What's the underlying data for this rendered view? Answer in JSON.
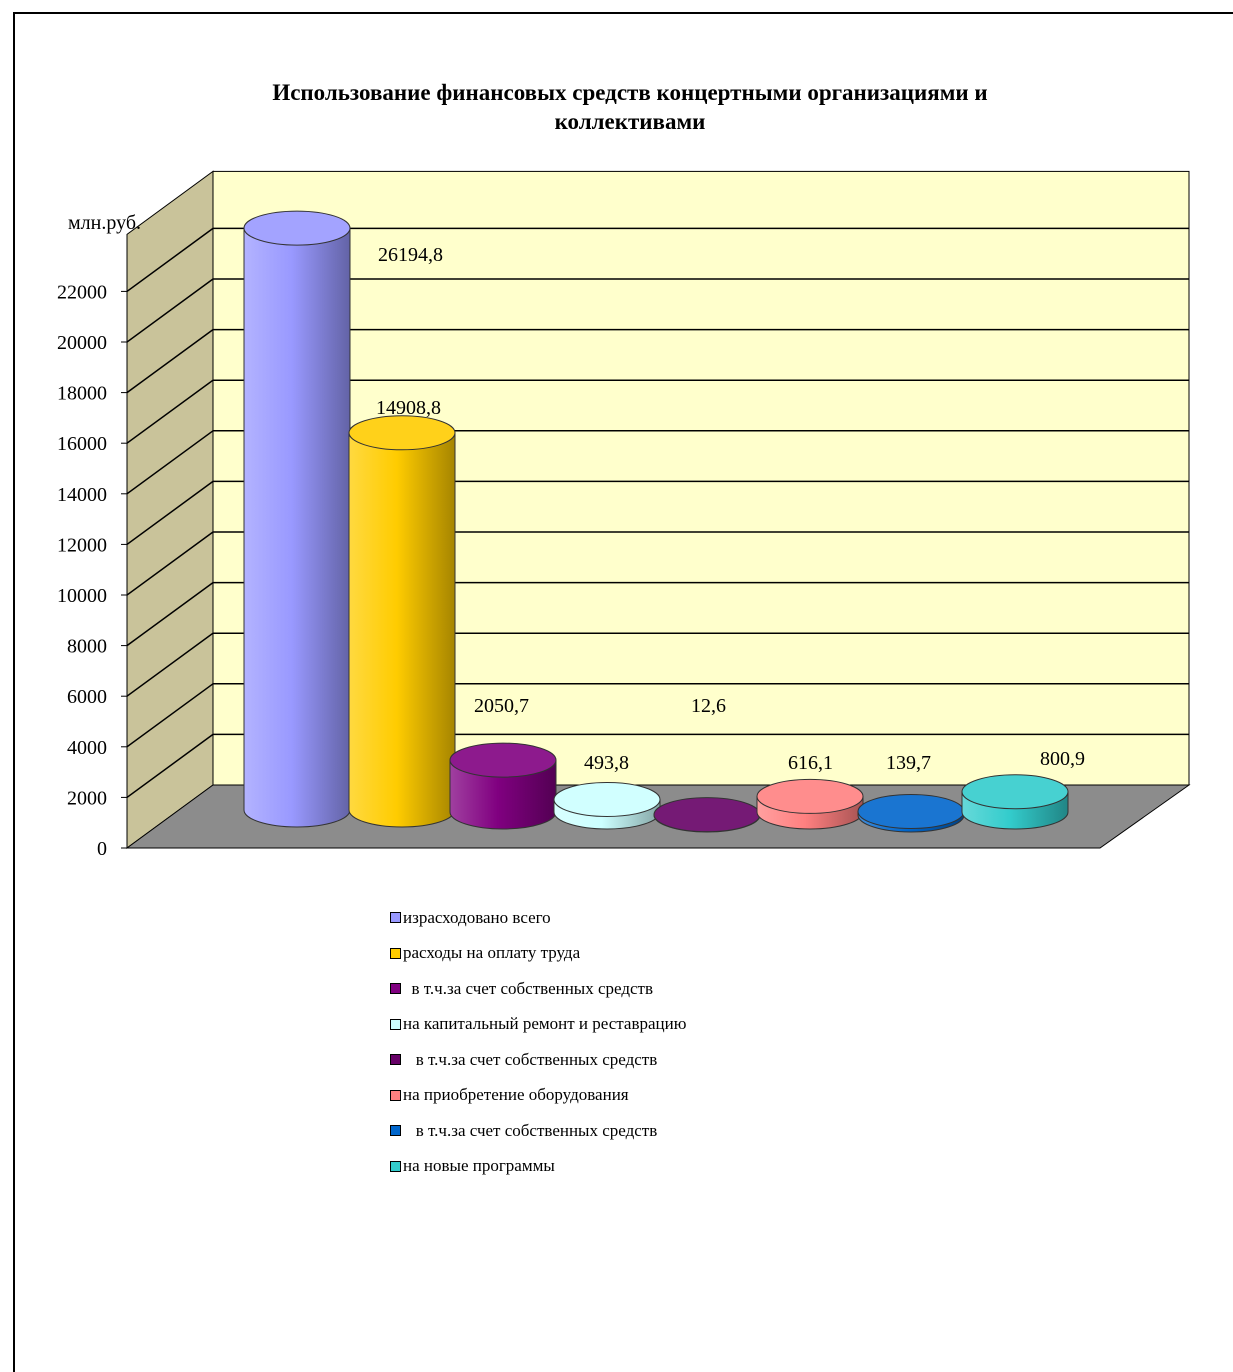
{
  "chart_data": {
    "type": "bar",
    "style": "3d-cylinder",
    "title": "Использование финансовых средств  концертными организациями и коллективами",
    "ylabel": "млн.руб.",
    "ylim": [
      0,
      22000
    ],
    "y_ticks": [
      "0",
      "2000",
      "4000",
      "6000",
      "8000",
      "10000",
      "12000",
      "14000",
      "16000",
      "18000",
      "20000",
      "22000"
    ],
    "grid": true,
    "legend_position": "bottom",
    "wall_color": "#ffffcc",
    "floor_color": "#8c8c8c",
    "side_wall_color": "#c9c39a",
    "series": [
      {
        "name": "израсходовано всего",
        "value": 26194.8,
        "label": "26194,8",
        "color": "#9999ff"
      },
      {
        "name": "расходы на оплату труда",
        "value": 14908.8,
        "label": "14908,8",
        "color": "#ffcc00"
      },
      {
        "name": "в т.ч.за счет собственных средств",
        "value": 2050.7,
        "label": "2050,7",
        "color": "#800080"
      },
      {
        "name": "на капитальный ремонт и реставрацию",
        "value": 493.8,
        "label": "493,8",
        "color": "#ccffff"
      },
      {
        "name": "в т.ч.за счет собственных средств",
        "value": 12.6,
        "label": "12,6",
        "color": "#660066"
      },
      {
        "name": "на приобретение оборудования",
        "value": 616.1,
        "label": "616,1",
        "color": "#ff8080"
      },
      {
        "name": "в т.ч.за счет собственных средств",
        "value": 139.7,
        "label": "139,7",
        "color": "#0066cc"
      },
      {
        "name": "на новые программы",
        "value": 800.9,
        "label": "800,9",
        "color": "#33cccc"
      }
    ]
  },
  "legend": {
    "items": [
      {
        "text": "израсходовано всего",
        "color": "#9999ff"
      },
      {
        "text": "расходы на оплату труда",
        "color": "#ffcc00"
      },
      {
        "text": "  в т.ч.за счет собственных средств",
        "color": "#800080"
      },
      {
        "text": "на капитальный ремонт и реставрацию",
        "color": "#ccffff"
      },
      {
        "text": "   в т.ч.за счет собственных средств",
        "color": "#660066"
      },
      {
        "text": "на приобретение оборудования",
        "color": "#ff8080"
      },
      {
        "text": "   в т.ч.за счет собственных средств",
        "color": "#0066cc"
      },
      {
        "text": "на новые программы",
        "color": "#33cccc"
      }
    ]
  }
}
